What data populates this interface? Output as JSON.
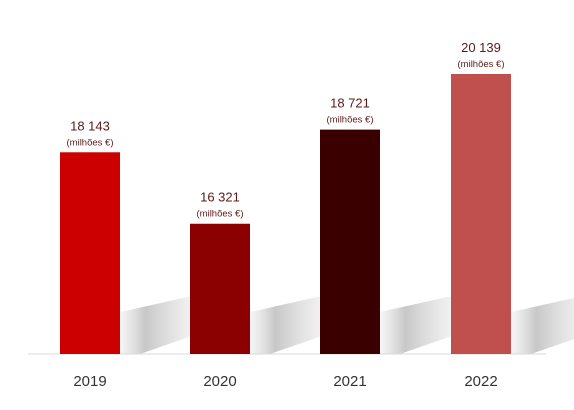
{
  "chart_data": {
    "type": "bar",
    "title": "",
    "xlabel": "",
    "ylabel": "",
    "categories": [
      "2019",
      "2020",
      "2021",
      "2022"
    ],
    "values": [
      18143,
      16321,
      18721,
      20139
    ],
    "value_labels": [
      "18 143",
      "16 321",
      "18 721",
      "20 139"
    ],
    "unit_label": "(milhões €)",
    "bar_colors": [
      "#cc0000",
      "#8b0000",
      "#3a0000",
      "#c0504d"
    ],
    "ylim": [
      13000,
      21000
    ],
    "grid": false,
    "legend": "none"
  }
}
